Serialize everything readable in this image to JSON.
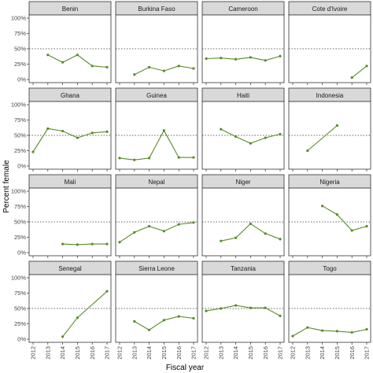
{
  "chart_data": {
    "type": "line",
    "layout": "facet-grid-4x4",
    "xlabel": "Fiscal year",
    "ylabel": "Percent female",
    "x_ticks": [
      "2012",
      "2013",
      "2014",
      "2015",
      "2016",
      "2017"
    ],
    "y_ticks": [
      "0%",
      "25%",
      "50%",
      "75%",
      "100%"
    ],
    "xlim": [
      2012,
      2017
    ],
    "ylim": [
      0,
      1
    ],
    "reference_line": {
      "y": 0.5,
      "style": "dotted"
    },
    "colors": {
      "line": "#5a8a2a",
      "strip_fill": "#d9d9d9",
      "panel_border": "#333333",
      "reference_line": "#333333"
    },
    "grid": false,
    "panels": [
      {
        "name": "Benin",
        "x": [
          2013,
          2014,
          2015,
          2016,
          2017
        ],
        "y": [
          0.4,
          0.28,
          0.4,
          0.22,
          0.2
        ]
      },
      {
        "name": "Burkina Faso",
        "x": [
          2013,
          2014,
          2015,
          2016,
          2017
        ],
        "y": [
          0.08,
          0.2,
          0.14,
          0.22,
          0.18
        ]
      },
      {
        "name": "Cameroon",
        "x": [
          2012,
          2013,
          2014,
          2015,
          2016,
          2017
        ],
        "y": [
          0.34,
          0.35,
          0.33,
          0.36,
          0.31,
          0.38
        ]
      },
      {
        "name": "Cote d'Ivoire",
        "x": [
          2016,
          2017
        ],
        "y": [
          0.03,
          0.22
        ]
      },
      {
        "name": "Ghana",
        "x": [
          2012,
          2013,
          2014,
          2015,
          2016,
          2017
        ],
        "y": [
          0.23,
          0.61,
          0.57,
          0.46,
          0.54,
          0.56
        ]
      },
      {
        "name": "Guinea",
        "x": [
          2012,
          2013,
          2014,
          2015,
          2016,
          2017
        ],
        "y": [
          0.13,
          0.1,
          0.13,
          0.58,
          0.14,
          0.14
        ]
      },
      {
        "name": "Haiti",
        "x": [
          2013,
          2014,
          2015,
          2016,
          2017
        ],
        "y": [
          0.6,
          0.48,
          0.37,
          0.46,
          0.52
        ]
      },
      {
        "name": "Indonesia",
        "x": [
          2013,
          2015
        ],
        "y": [
          0.25,
          0.66
        ]
      },
      {
        "name": "Mali",
        "x": [
          2014,
          2015,
          2016,
          2017
        ],
        "y": [
          0.14,
          0.13,
          0.14,
          0.14
        ]
      },
      {
        "name": "Nepal",
        "x": [
          2012,
          2013,
          2014,
          2015,
          2016,
          2017
        ],
        "y": [
          0.17,
          0.33,
          0.43,
          0.35,
          0.46,
          0.49
        ]
      },
      {
        "name": "Niger",
        "x": [
          2013,
          2014,
          2015,
          2016,
          2017
        ],
        "y": [
          0.19,
          0.24,
          0.47,
          0.31,
          0.22
        ]
      },
      {
        "name": "Nigeria",
        "x": [
          2014,
          2015,
          2016,
          2017
        ],
        "y": [
          0.76,
          0.62,
          0.36,
          0.43
        ]
      },
      {
        "name": "Senegal",
        "x": [
          2014,
          2015,
          2017
        ],
        "y": [
          0.04,
          0.35,
          0.78
        ]
      },
      {
        "name": "Sierra Leone",
        "x": [
          2013,
          2014,
          2015,
          2016,
          2017
        ],
        "y": [
          0.29,
          0.15,
          0.31,
          0.37,
          0.34
        ]
      },
      {
        "name": "Tanzania",
        "x": [
          2012,
          2013,
          2014,
          2015,
          2016,
          2017
        ],
        "y": [
          0.46,
          0.5,
          0.55,
          0.51,
          0.51,
          0.38
        ]
      },
      {
        "name": "Togo",
        "x": [
          2012,
          2013,
          2014,
          2015,
          2016,
          2017
        ],
        "y": [
          0.05,
          0.19,
          0.14,
          0.13,
          0.11,
          0.16
        ]
      }
    ]
  }
}
